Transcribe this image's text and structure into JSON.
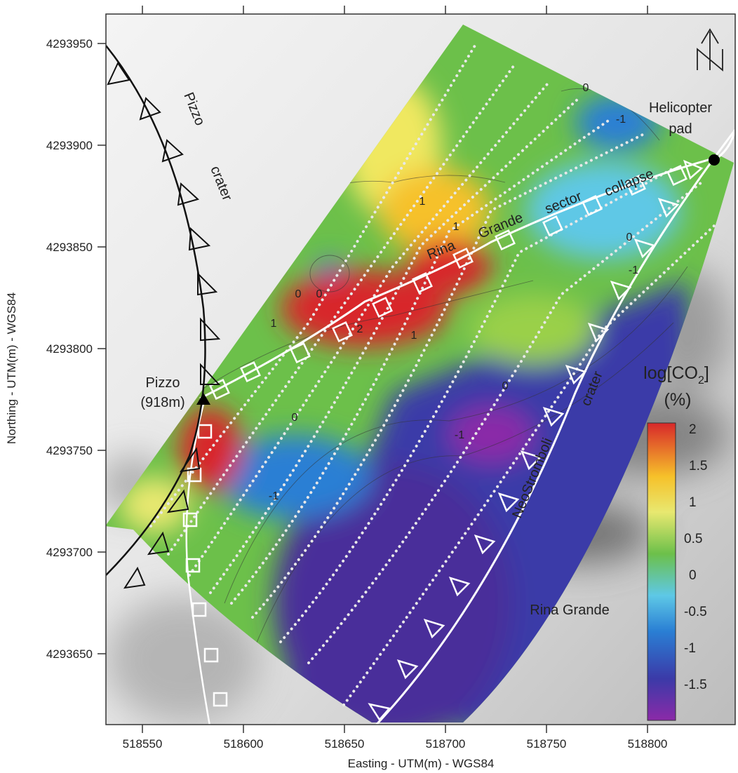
{
  "map": {
    "x_axis_label": "Easting  - UTM(m) - WGS84",
    "y_axis_label": "Northing - UTM(m) - WGS84",
    "x_ticks": [
      "518550",
      "518600",
      "518650",
      "518700",
      "518750",
      "518800"
    ],
    "y_ticks": [
      "4293950",
      "4293900",
      "4293850",
      "4293800",
      "4293750",
      "4293700",
      "4293650"
    ],
    "legend": {
      "title_line1": "log[CO",
      "title_sub": "2",
      "title_end": "]",
      "title_line2": "(%)",
      "ticks": [
        "2",
        "1.5",
        "1",
        "0.5",
        "0",
        "-0.5",
        "-1",
        "-1.5"
      ],
      "colors": [
        "#8b2aa8",
        "#3b3aa8",
        "#2a7fd4",
        "#5ec8e6",
        "#6cc04a",
        "#e8e870",
        "#f6c12a",
        "#d8282a"
      ]
    },
    "labels": {
      "helicopter_line1": "Helicopter",
      "helicopter_line2": "pad",
      "pizzo_line1": "Pizzo",
      "pizzo_line2": "(918m)",
      "pizzo_crater_1": "Pizzo",
      "pizzo_crater_2": "crater",
      "sector_rina": "Rina",
      "sector_grande": "Grande",
      "sector_sector": "sector",
      "sector_collapse": "collapse",
      "neo_1": "NeoStromboli",
      "neo_2": "crater",
      "rina_grande": "Rina Grande"
    },
    "contour_labels": [
      "0",
      "-1",
      "1",
      "1",
      "0",
      "0",
      "1",
      "2",
      "1",
      "0",
      "0",
      "-1",
      "-1",
      "0",
      "-1"
    ],
    "north_arrow": "N"
  }
}
